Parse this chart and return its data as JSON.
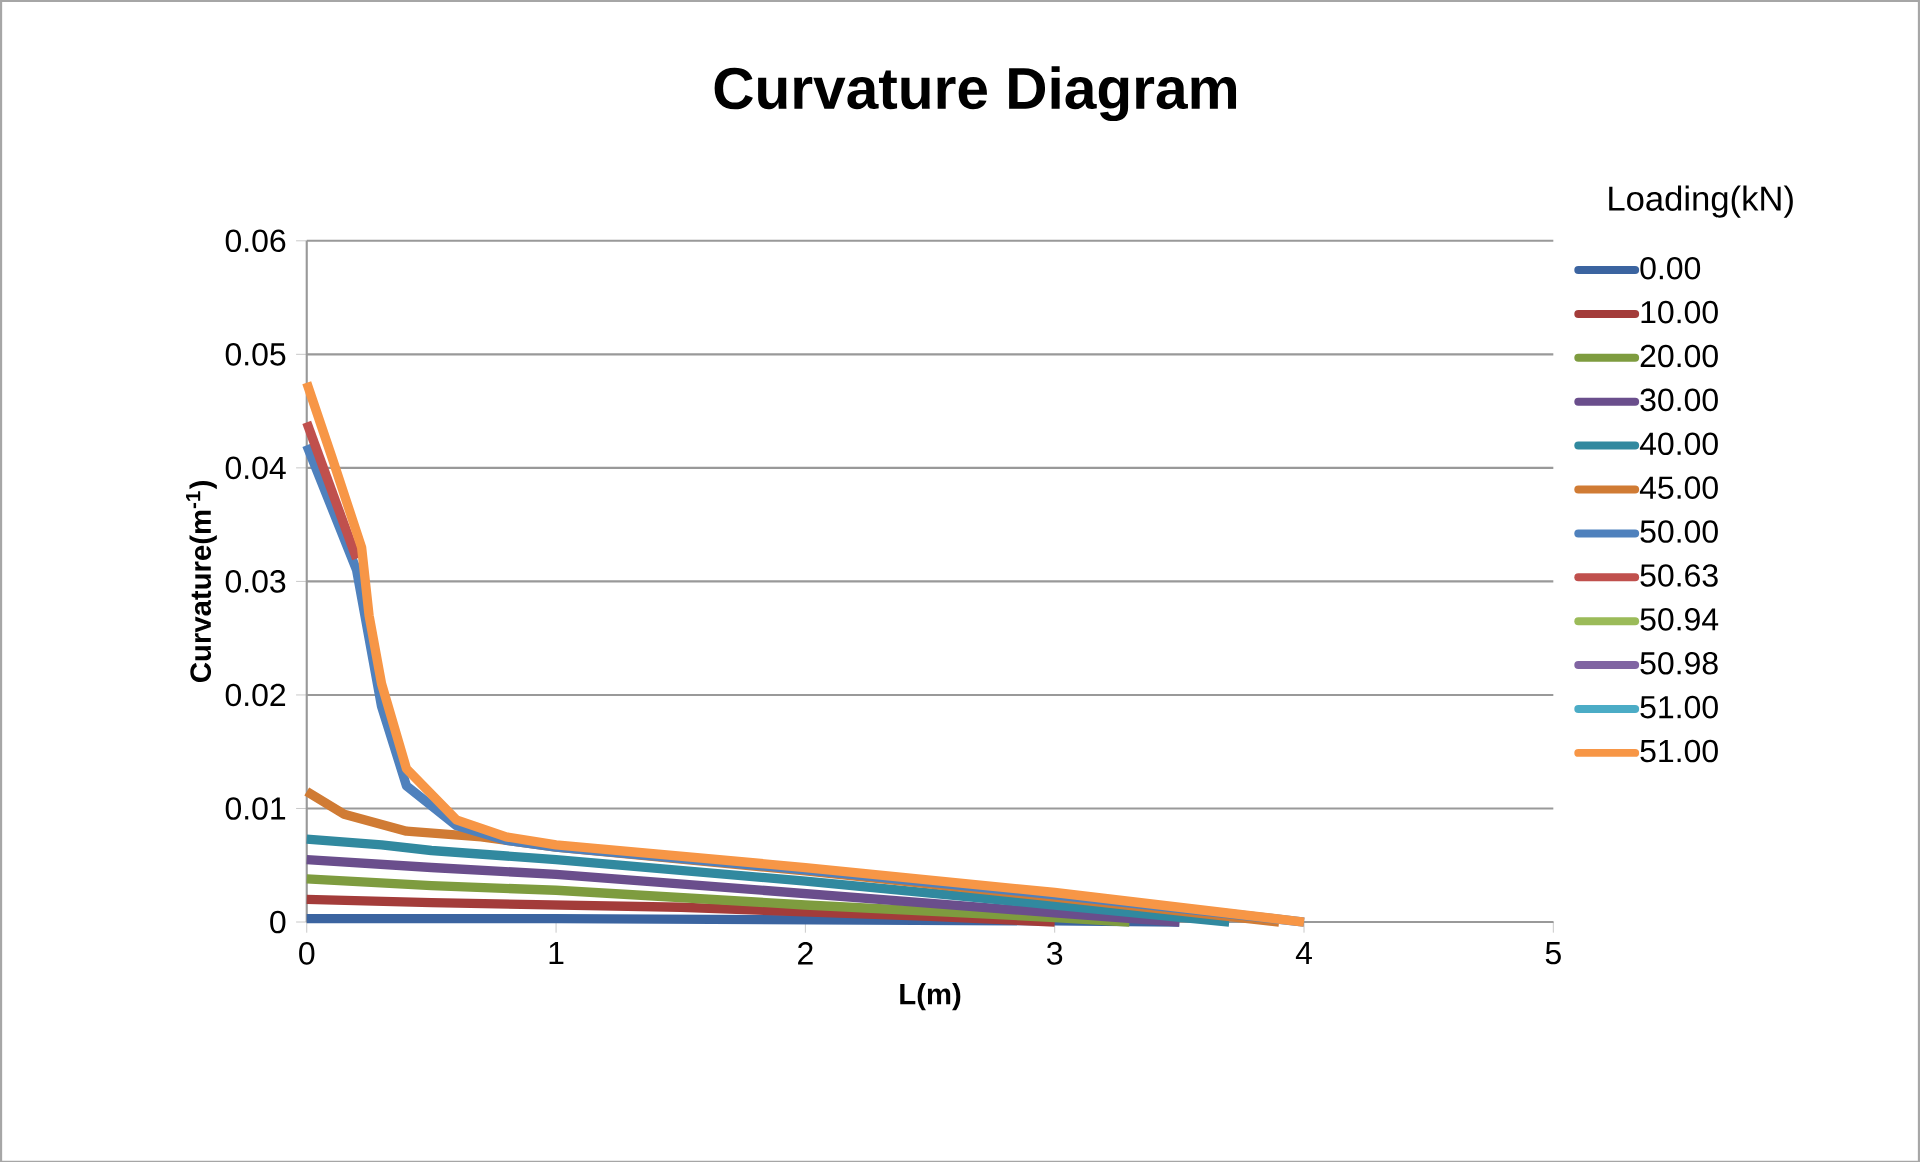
{
  "chart_data": {
    "type": "line",
    "title": "Curvature Diagram",
    "xlabel": "L(m)",
    "ylabel": "Curvature(m$^{-1}$)",
    "legend_title": "Loading(kN)",
    "xlim": [
      0,
      5
    ],
    "xticks": [
      0,
      1,
      2,
      3,
      4,
      5
    ],
    "ylim": [
      0,
      0.06
    ],
    "yticks": [
      0,
      0.01,
      0.02,
      0.03,
      0.04,
      0.05,
      0.06
    ],
    "grid": "y",
    "legend": "right",
    "line_style": "solid",
    "marker": "none",
    "series": [
      {
        "name": "0.00",
        "color": "#3b64a0",
        "x": [
          0,
          1,
          2,
          3,
          3.5
        ],
        "values": [
          0.0003,
          0.0003,
          0.0002,
          0.0001,
          0
        ]
      },
      {
        "name": "10.00",
        "color": "#a33c3a",
        "x": [
          0,
          0.5,
          1.5,
          2.5,
          3.0
        ],
        "values": [
          0.002,
          0.0017,
          0.0013,
          0.0005,
          0
        ]
      },
      {
        "name": "20.00",
        "color": "#7e9c3f",
        "x": [
          0,
          0.5,
          1,
          2,
          3,
          3.3
        ],
        "values": [
          0.0038,
          0.0032,
          0.0028,
          0.0015,
          0.0004,
          0
        ]
      },
      {
        "name": "30.00",
        "color": "#6a4e8c",
        "x": [
          0,
          0.5,
          1,
          2,
          3,
          3.5
        ],
        "values": [
          0.0055,
          0.0048,
          0.0042,
          0.0025,
          0.0008,
          0
        ]
      },
      {
        "name": "40.00",
        "color": "#31899f",
        "x": [
          0,
          0.3,
          0.5,
          1,
          2,
          3,
          3.7
        ],
        "values": [
          0.0073,
          0.0068,
          0.0063,
          0.0055,
          0.0036,
          0.0015,
          0
        ]
      },
      {
        "name": "45.00",
        "color": "#d07b34",
        "x": [
          0,
          0.15,
          0.4,
          0.7,
          1,
          2,
          3,
          3.9
        ],
        "values": [
          0.0115,
          0.0095,
          0.008,
          0.0075,
          0.0066,
          0.0045,
          0.0022,
          0
        ]
      },
      {
        "name": "50.00",
        "color": "#4f81bd",
        "x": [
          0,
          0.2,
          0.3,
          0.4,
          0.6,
          0.8,
          1,
          2,
          3,
          4
        ],
        "values": [
          0.042,
          0.031,
          0.019,
          0.012,
          0.0085,
          0.0072,
          0.0066,
          0.0046,
          0.0024,
          0
        ]
      },
      {
        "name": "50.63",
        "color": "#c0504d",
        "x": [
          0,
          0.2
        ],
        "values": [
          0.044,
          0.032
        ]
      },
      {
        "name": "50.94",
        "color": "#9bbb59"
      },
      {
        "name": "50.98",
        "color": "#8064a2"
      },
      {
        "name": "51.00",
        "color": "#4bacc6"
      },
      {
        "name": "51.00",
        "color": "#f79646",
        "x": [
          0,
          0.1,
          0.22,
          0.25,
          0.3,
          0.4,
          0.6,
          0.8,
          1,
          2,
          3,
          4
        ],
        "values": [
          0.0475,
          0.041,
          0.033,
          0.027,
          0.021,
          0.0135,
          0.009,
          0.0075,
          0.0068,
          0.0048,
          0.0026,
          0
        ]
      }
    ]
  }
}
